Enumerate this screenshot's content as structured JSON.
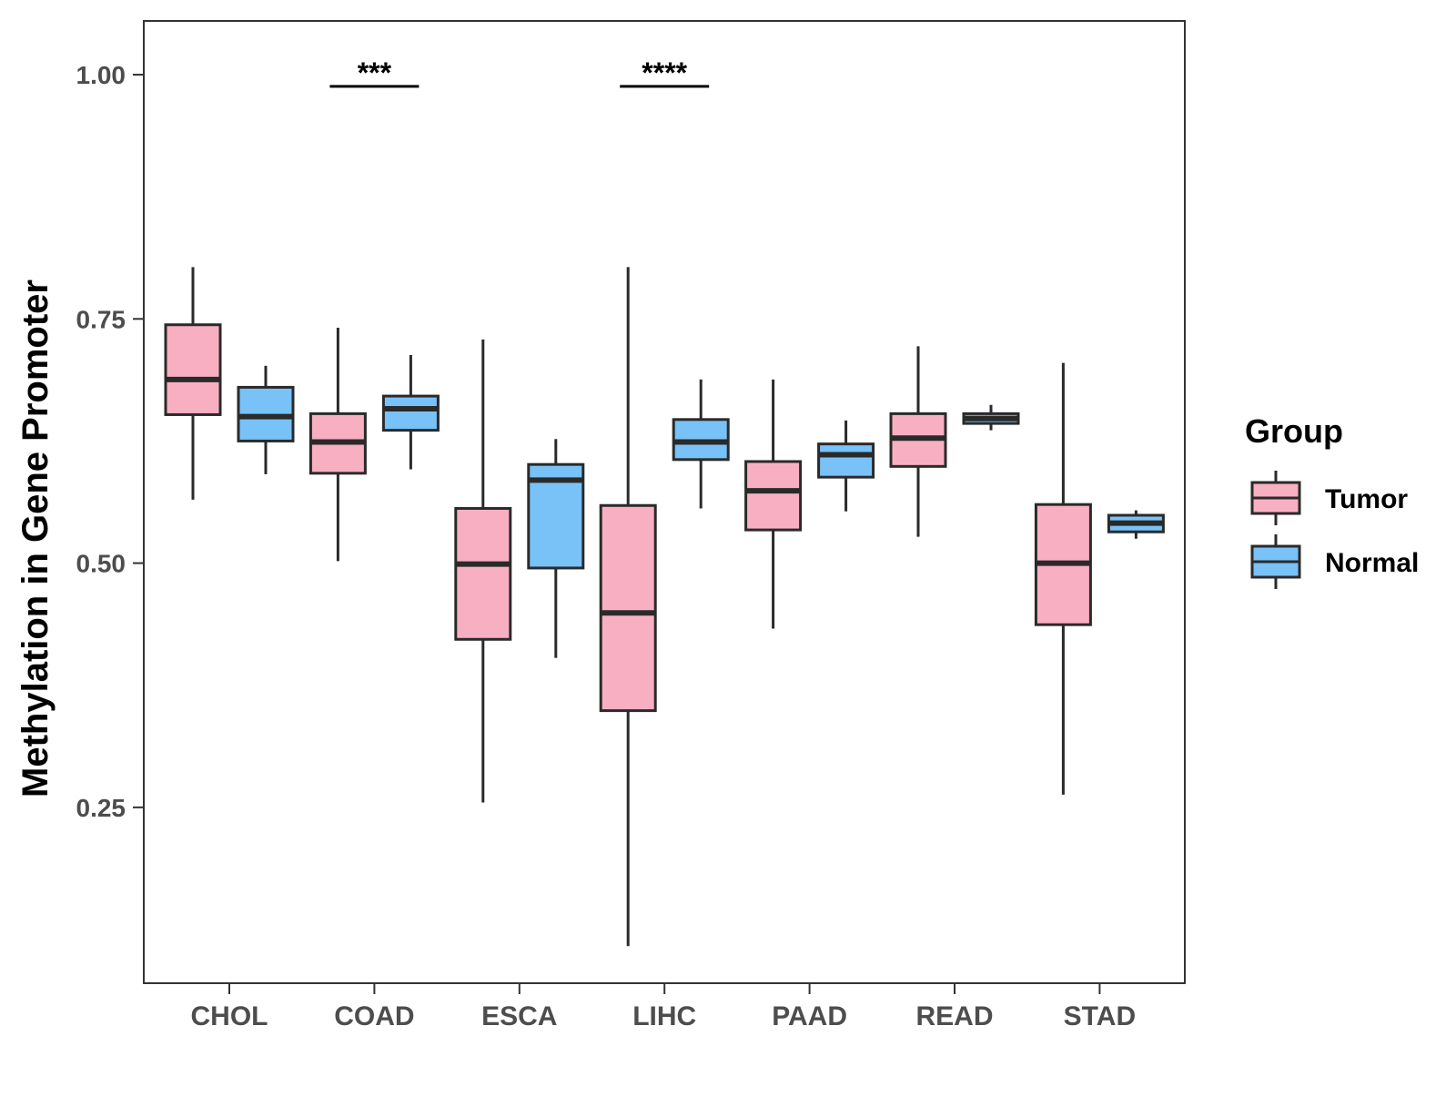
{
  "chart_data": {
    "type": "boxplot",
    "title": "",
    "xlabel": "",
    "ylabel": "Methylation in Gene Promoter",
    "ylim": [
      0.07,
      1.055
    ],
    "yticks": [
      0.25,
      0.5,
      0.75,
      1.0
    ],
    "ytick_labels": [
      "0.25",
      "0.50",
      "0.75",
      "1.00"
    ],
    "categories": [
      "CHOL",
      "COAD",
      "ESCA",
      "LIHC",
      "PAAD",
      "READ",
      "STAD"
    ],
    "legend": {
      "title": "Group",
      "position": "right"
    },
    "series": [
      {
        "name": "Tumor",
        "color": "#F9AFC2",
        "boxes": [
          {
            "category": "CHOL",
            "min": 0.565,
            "q1": 0.652,
            "median": 0.688,
            "q3": 0.744,
            "max": 0.803
          },
          {
            "category": "COAD",
            "min": 0.502,
            "q1": 0.592,
            "median": 0.624,
            "q3": 0.653,
            "max": 0.741
          },
          {
            "category": "ESCA",
            "min": 0.255,
            "q1": 0.422,
            "median": 0.499,
            "q3": 0.556,
            "max": 0.729
          },
          {
            "category": "LIHC",
            "min": 0.108,
            "q1": 0.349,
            "median": 0.449,
            "q3": 0.559,
            "max": 0.803
          },
          {
            "category": "PAAD",
            "min": 0.433,
            "q1": 0.534,
            "median": 0.574,
            "q3": 0.604,
            "max": 0.688
          },
          {
            "category": "READ",
            "min": 0.527,
            "q1": 0.599,
            "median": 0.628,
            "q3": 0.653,
            "max": 0.722
          },
          {
            "category": "STAD",
            "min": 0.263,
            "q1": 0.437,
            "median": 0.5,
            "q3": 0.56,
            "max": 0.705
          }
        ]
      },
      {
        "name": "Normal",
        "color": "#79C2F8",
        "boxes": [
          {
            "category": "CHOL",
            "min": 0.591,
            "q1": 0.625,
            "median": 0.65,
            "q3": 0.68,
            "max": 0.702
          },
          {
            "category": "COAD",
            "min": 0.596,
            "q1": 0.636,
            "median": 0.658,
            "q3": 0.671,
            "max": 0.713
          },
          {
            "category": "ESCA",
            "min": 0.403,
            "q1": 0.495,
            "median": 0.585,
            "q3": 0.601,
            "max": 0.627
          },
          {
            "category": "LIHC",
            "min": 0.556,
            "q1": 0.606,
            "median": 0.624,
            "q3": 0.647,
            "max": 0.688
          },
          {
            "category": "PAAD",
            "min": 0.553,
            "q1": 0.588,
            "median": 0.611,
            "q3": 0.622,
            "max": 0.646
          },
          {
            "category": "READ",
            "min": 0.636,
            "q1": 0.643,
            "median": 0.648,
            "q3": 0.653,
            "max": 0.662
          },
          {
            "category": "STAD",
            "min": 0.525,
            "q1": 0.532,
            "median": 0.541,
            "q3": 0.549,
            "max": 0.554
          }
        ]
      }
    ],
    "annotations": [
      {
        "category": "COAD",
        "text": "***",
        "y": 0.988
      },
      {
        "category": "LIHC",
        "text": "****",
        "y": 0.988
      }
    ]
  }
}
